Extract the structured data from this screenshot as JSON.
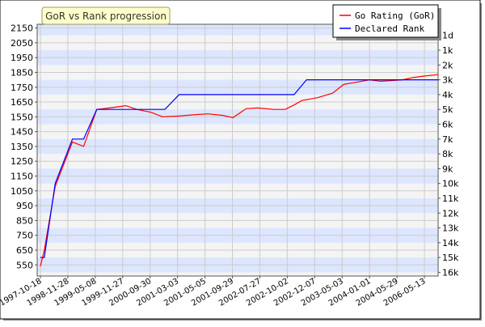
{
  "chart_data": {
    "type": "line",
    "title": "GoR vs Rank progression",
    "xlabel": "",
    "ylabel_left": "",
    "ylabel_right": "",
    "grid": true,
    "legend_position": "top-right",
    "colors": {
      "gor": "#ff0000",
      "rank": "#0000ff",
      "band": "#dde6ff",
      "plot_bg": "#f4f4f4",
      "title_bg": "#ffffcc",
      "title_border": "#999966"
    },
    "x_tick_labels": [
      "1997-10-18",
      "1998-11-28",
      "1999-05-08",
      "1999-11-27",
      "2000-09-30",
      "2001-03-03",
      "2001-05-05",
      "2001-09-29",
      "2002-07-27",
      "2002-10-02",
      "2002-12-07",
      "2003-05-03",
      "2004-01-01",
      "2004-05-29",
      "2006-05-13"
    ],
    "ylim": [
      475,
      2175
    ],
    "y_ticks": [
      550,
      650,
      750,
      850,
      950,
      1050,
      1150,
      1250,
      1350,
      1450,
      1550,
      1650,
      1750,
      1850,
      1950,
      2050,
      2150
    ],
    "right_ticks": [
      {
        "label": "1d",
        "value": 2100
      },
      {
        "label": "1k",
        "value": 2000
      },
      {
        "label": "2k",
        "value": 1900
      },
      {
        "label": "3k",
        "value": 1800
      },
      {
        "label": "4k",
        "value": 1700
      },
      {
        "label": "5k",
        "value": 1600
      },
      {
        "label": "6k",
        "value": 1500
      },
      {
        "label": "7k",
        "value": 1400
      },
      {
        "label": "8k",
        "value": 1300
      },
      {
        "label": "9k",
        "value": 1200
      },
      {
        "label": "10k",
        "value": 1100
      },
      {
        "label": "11k",
        "value": 1000
      },
      {
        "label": "12k",
        "value": 900
      },
      {
        "label": "13k",
        "value": 800
      },
      {
        "label": "14k",
        "value": 700
      },
      {
        "label": "15k",
        "value": 600
      },
      {
        "label": "16k",
        "value": 500
      }
    ],
    "x_index_range": [
      0,
      67.1
    ],
    "series": [
      {
        "name": "Go Rating (GoR)",
        "color": "#ff0000",
        "points": [
          [
            0,
            540
          ],
          [
            0.66,
            650
          ],
          [
            2.5,
            1080
          ],
          [
            5.4,
            1380
          ],
          [
            7.3,
            1350
          ],
          [
            9.5,
            1600
          ],
          [
            11.6,
            1610
          ],
          [
            14.4,
            1625
          ],
          [
            16.3,
            1600
          ],
          [
            18.7,
            1580
          ],
          [
            20.6,
            1550
          ],
          [
            23.4,
            1555
          ],
          [
            26.2,
            1565
          ],
          [
            28.2,
            1570
          ],
          [
            30.7,
            1560
          ],
          [
            32.5,
            1545
          ],
          [
            34.7,
            1605
          ],
          [
            36.6,
            1610
          ],
          [
            39.4,
            1600
          ],
          [
            41.3,
            1600
          ],
          [
            42.8,
            1630
          ],
          [
            44.1,
            1660
          ],
          [
            46.8,
            1680
          ],
          [
            49.3,
            1710
          ],
          [
            51.2,
            1770
          ],
          [
            52.8,
            1780
          ],
          [
            55.5,
            1800
          ],
          [
            57.4,
            1790
          ],
          [
            59.3,
            1795
          ],
          [
            61.1,
            1800
          ],
          [
            62.8,
            1815
          ],
          [
            64.7,
            1825
          ],
          [
            67.1,
            1835
          ]
        ]
      },
      {
        "name": "Declared Rank",
        "color": "#0000ff",
        "points": [
          [
            0,
            600
          ],
          [
            0.66,
            600
          ],
          [
            2.5,
            1100
          ],
          [
            5.4,
            1400
          ],
          [
            7.3,
            1400
          ],
          [
            9.5,
            1600
          ],
          [
            14.4,
            1600
          ],
          [
            19.7,
            1600
          ],
          [
            21.0,
            1600
          ],
          [
            23.4,
            1700
          ],
          [
            30.7,
            1700
          ],
          [
            34.7,
            1700
          ],
          [
            38.5,
            1700
          ],
          [
            41.3,
            1700
          ],
          [
            42.8,
            1700
          ],
          [
            44.9,
            1800
          ],
          [
            48.6,
            1800
          ],
          [
            55.5,
            1800
          ],
          [
            58.7,
            1800
          ],
          [
            62.8,
            1800
          ],
          [
            67.1,
            1800
          ]
        ]
      }
    ]
  }
}
